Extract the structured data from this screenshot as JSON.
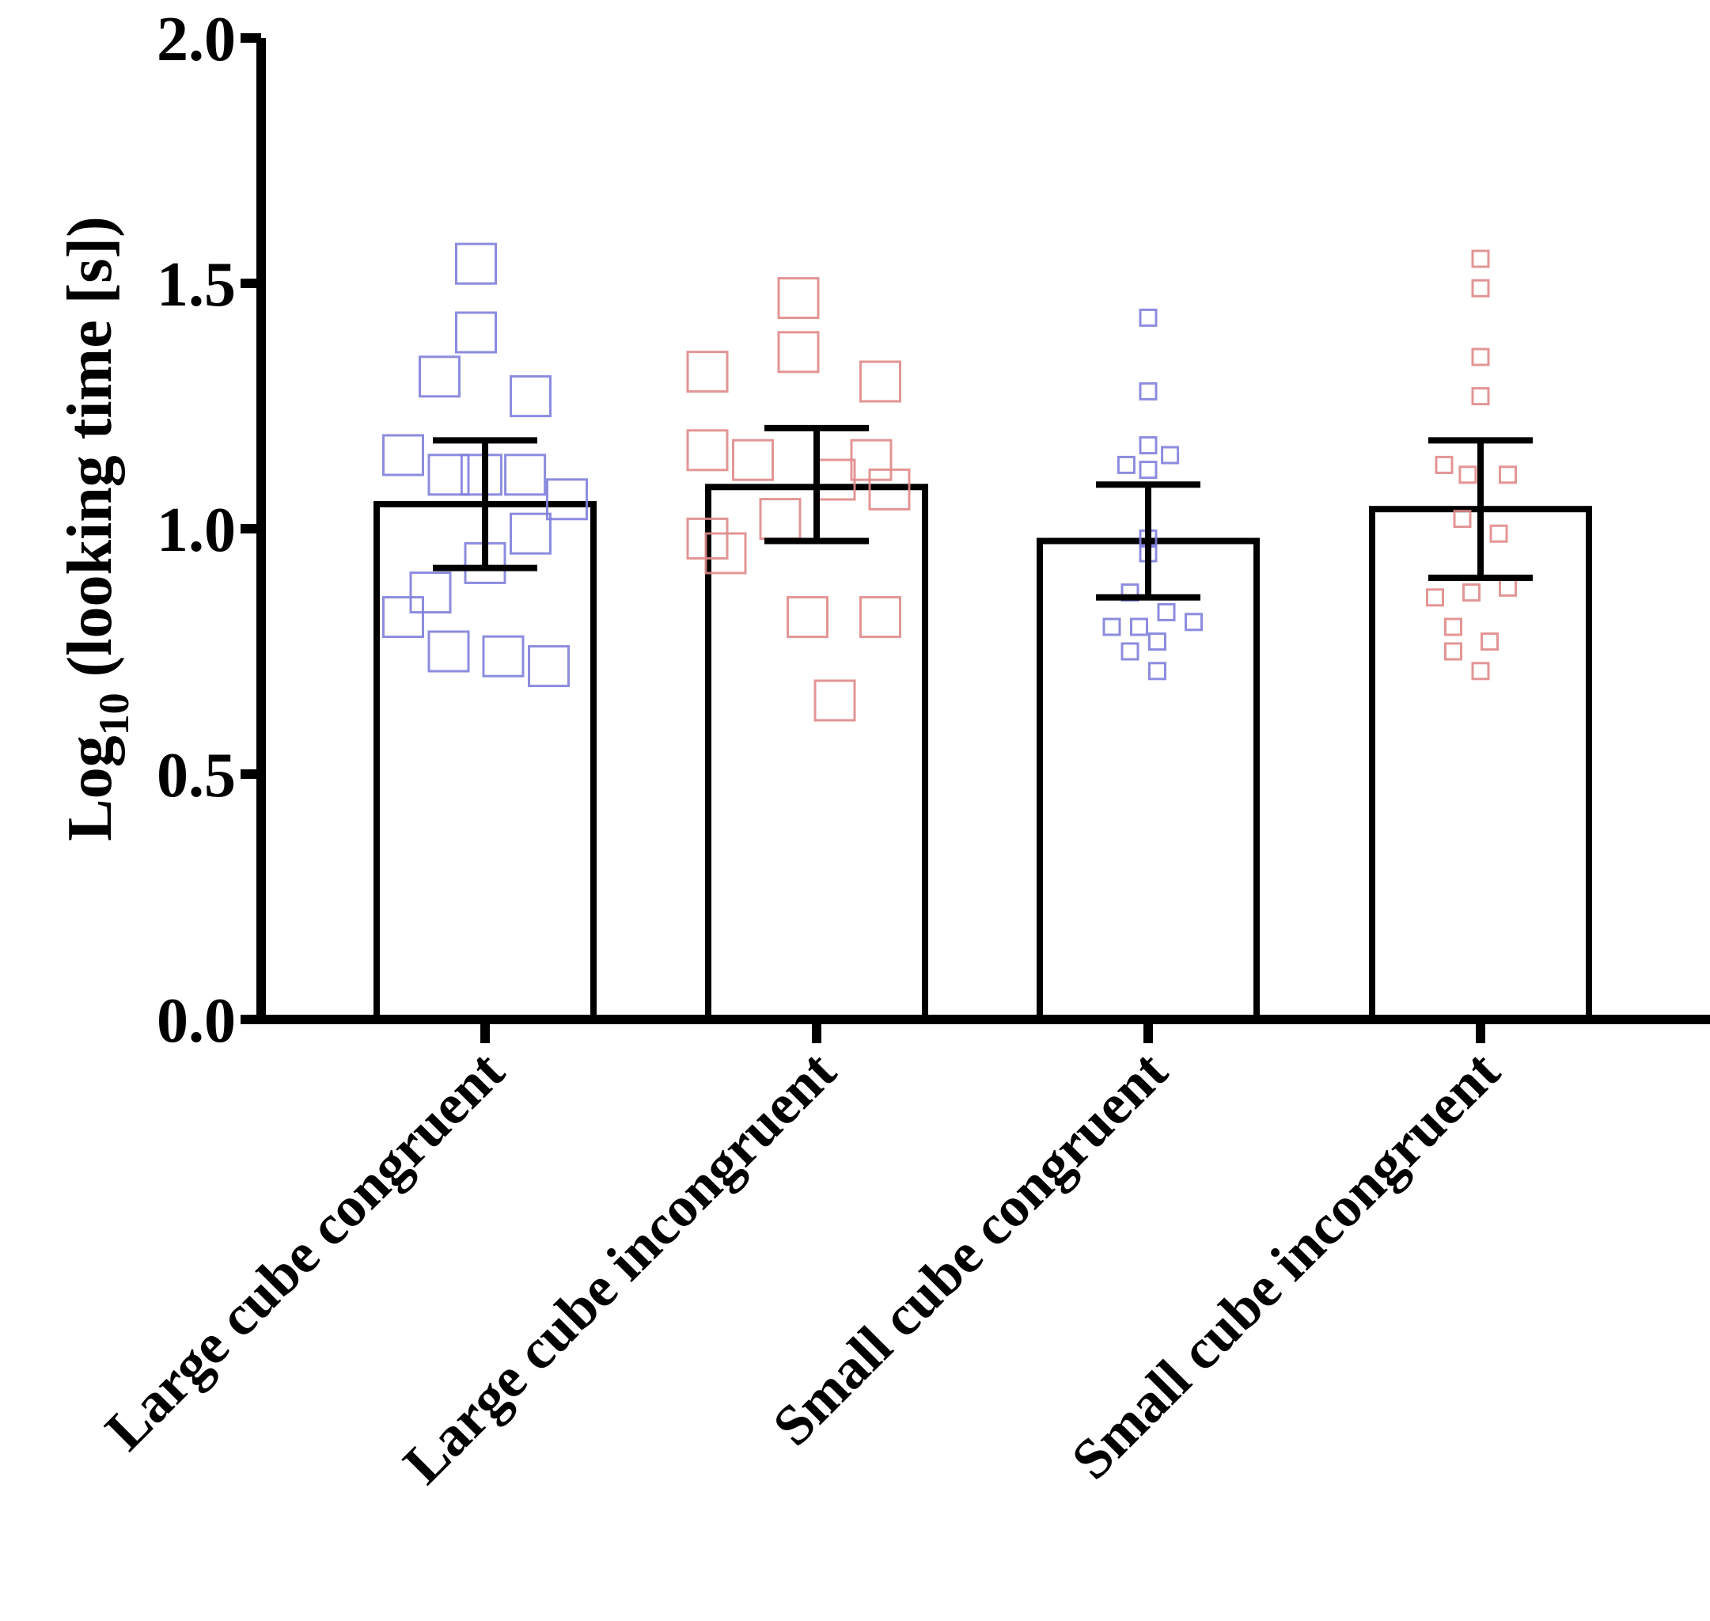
{
  "chart_data": {
    "type": "bar",
    "title": "",
    "xlabel": "",
    "ylabel": {
      "prefix": "Log",
      "subscript": "10",
      "suffix": " (looking time [s])"
    },
    "ylim": [
      0,
      2
    ],
    "yticks": [
      "0.0",
      "0.5",
      "1.0",
      "1.5",
      "2.0"
    ],
    "categories": [
      "Large cube congruent",
      "Large cube incongruent",
      "Small cube congruent",
      "Small cube incongruent"
    ],
    "means": [
      1.05,
      1.085,
      0.975,
      1.04
    ],
    "error_low": [
      0.92,
      0.975,
      0.86,
      0.9
    ],
    "error_high": [
      1.18,
      1.205,
      1.09,
      1.18
    ],
    "point_colors": [
      "#8080dd",
      "#e08a8a",
      "#8080dd",
      "#e08a8a"
    ],
    "points": [
      [
        {
          "x": -0.05,
          "y": 1.54
        },
        {
          "x": -0.05,
          "y": 1.4
        },
        {
          "x": -0.25,
          "y": 1.31
        },
        {
          "x": 0.25,
          "y": 1.27
        },
        {
          "x": -0.45,
          "y": 1.15
        },
        {
          "x": -0.2,
          "y": 1.11
        },
        {
          "x": -0.02,
          "y": 1.11
        },
        {
          "x": 0.22,
          "y": 1.11
        },
        {
          "x": 0.45,
          "y": 1.06
        },
        {
          "x": 0.25,
          "y": 0.99
        },
        {
          "x": 0.0,
          "y": 0.93
        },
        {
          "x": -0.3,
          "y": 0.87
        },
        {
          "x": -0.45,
          "y": 0.82
        },
        {
          "x": -0.2,
          "y": 0.75
        },
        {
          "x": 0.1,
          "y": 0.74
        },
        {
          "x": 0.35,
          "y": 0.72
        }
      ],
      [
        {
          "x": -0.1,
          "y": 1.47
        },
        {
          "x": -0.6,
          "y": 1.32
        },
        {
          "x": -0.1,
          "y": 1.36
        },
        {
          "x": 0.35,
          "y": 1.3
        },
        {
          "x": -0.6,
          "y": 1.16
        },
        {
          "x": -0.35,
          "y": 1.14
        },
        {
          "x": 0.3,
          "y": 1.14
        },
        {
          "x": 0.1,
          "y": 1.1
        },
        {
          "x": 0.4,
          "y": 1.08
        },
        {
          "x": -0.2,
          "y": 1.02
        },
        {
          "x": -0.6,
          "y": 0.98
        },
        {
          "x": -0.5,
          "y": 0.95
        },
        {
          "x": -0.05,
          "y": 0.82
        },
        {
          "x": 0.35,
          "y": 0.82
        },
        {
          "x": 0.1,
          "y": 0.65
        }
      ],
      [
        {
          "x": 0.0,
          "y": 1.43
        },
        {
          "x": 0.0,
          "y": 1.28
        },
        {
          "x": 0.0,
          "y": 1.17
        },
        {
          "x": 0.12,
          "y": 1.15
        },
        {
          "x": -0.12,
          "y": 1.13
        },
        {
          "x": 0.0,
          "y": 1.12
        },
        {
          "x": 0.0,
          "y": 0.98
        },
        {
          "x": 0.0,
          "y": 0.95
        },
        {
          "x": -0.1,
          "y": 0.87
        },
        {
          "x": 0.1,
          "y": 0.83
        },
        {
          "x": -0.2,
          "y": 0.8
        },
        {
          "x": -0.05,
          "y": 0.8
        },
        {
          "x": 0.25,
          "y": 0.81
        },
        {
          "x": 0.05,
          "y": 0.77
        },
        {
          "x": -0.1,
          "y": 0.75
        },
        {
          "x": 0.05,
          "y": 0.71
        }
      ],
      [
        {
          "x": 0.0,
          "y": 1.55
        },
        {
          "x": 0.0,
          "y": 1.49
        },
        {
          "x": 0.0,
          "y": 1.35
        },
        {
          "x": 0.0,
          "y": 1.27
        },
        {
          "x": -0.2,
          "y": 1.13
        },
        {
          "x": -0.07,
          "y": 1.11
        },
        {
          "x": 0.15,
          "y": 1.11
        },
        {
          "x": -0.1,
          "y": 1.02
        },
        {
          "x": 0.1,
          "y": 0.99
        },
        {
          "x": -0.25,
          "y": 0.86
        },
        {
          "x": -0.05,
          "y": 0.87
        },
        {
          "x": 0.15,
          "y": 0.88
        },
        {
          "x": -0.15,
          "y": 0.8
        },
        {
          "x": 0.05,
          "y": 0.77
        },
        {
          "x": -0.15,
          "y": 0.75
        },
        {
          "x": 0.0,
          "y": 0.71
        }
      ]
    ]
  }
}
